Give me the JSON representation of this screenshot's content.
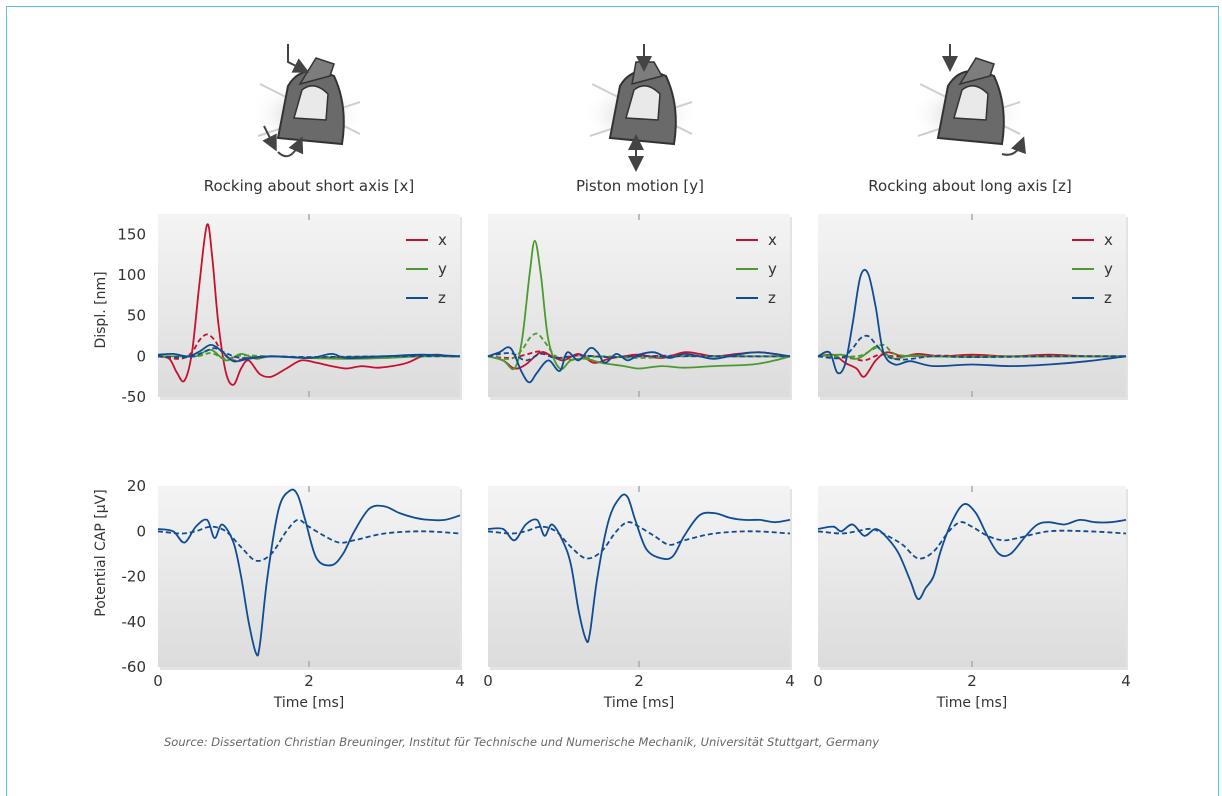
{
  "source": "Source: Dissertation Christian Breuninger, Institut für Technische und Numerische Mechanik, Universität Stuttgart, Germany",
  "colors": {
    "x": "#c8102e",
    "y": "#4a9a2f",
    "z": "#0f4c93",
    "frame": "#5cc3d8"
  },
  "icons": [
    "short-axis-rocking-icon",
    "piston-motion-icon",
    "long-axis-rocking-icon"
  ],
  "chart_data": [
    {
      "type": "line",
      "title": "Rocking about short axis [x]",
      "ylabel": "Displ. [nm]",
      "xlim": [
        0,
        4
      ],
      "ylim": [
        -50,
        175
      ],
      "yticks": [
        150,
        100,
        50,
        0,
        -50
      ],
      "legend": [
        "x",
        "y",
        "z"
      ],
      "series": [
        {
          "name": "x",
          "style": "solid",
          "x": [
            0,
            0.15,
            0.25,
            0.35,
            0.45,
            0.55,
            0.65,
            0.72,
            0.8,
            0.9,
            1.0,
            1.1,
            1.2,
            1.35,
            1.5,
            1.7,
            1.9,
            2.1,
            2.3,
            2.5,
            2.7,
            2.9,
            3.1,
            3.3,
            3.5,
            3.7,
            3.85,
            4.0
          ],
          "y": [
            0,
            -3,
            -20,
            -30,
            5,
            90,
            162,
            120,
            40,
            -20,
            -35,
            -15,
            -5,
            -22,
            -25,
            -15,
            -5,
            -8,
            -12,
            -15,
            -12,
            -14,
            -12,
            -8,
            0,
            2,
            0,
            0
          ]
        },
        {
          "name": "x",
          "style": "dashed",
          "x": [
            0,
            0.3,
            0.45,
            0.55,
            0.65,
            0.75,
            0.85,
            1.0,
            1.2,
            1.5,
            2.0,
            2.5,
            3.0,
            3.5,
            4.0
          ],
          "y": [
            0,
            -3,
            5,
            20,
            27,
            20,
            5,
            -5,
            -2,
            0,
            -2,
            -1,
            0,
            1,
            0
          ]
        },
        {
          "name": "y",
          "style": "solid",
          "x": [
            0,
            0.3,
            0.5,
            0.7,
            0.9,
            1.1,
            1.3,
            1.5,
            2.0,
            2.5,
            3.0,
            3.5,
            4.0
          ],
          "y": [
            0,
            0,
            0,
            8,
            -5,
            3,
            -3,
            0,
            -2,
            -3,
            -2,
            0,
            0
          ]
        },
        {
          "name": "y",
          "style": "dashed",
          "x": [
            0,
            0.5,
            0.7,
            0.9,
            1.1,
            1.5,
            2.0,
            3.0,
            4.0
          ],
          "y": [
            0,
            0,
            4,
            -3,
            1,
            0,
            -1,
            0,
            0
          ]
        },
        {
          "name": "z",
          "style": "solid",
          "x": [
            0,
            0.2,
            0.4,
            0.55,
            0.7,
            0.85,
            1.0,
            1.2,
            1.5,
            2.0,
            2.3,
            2.5,
            3.0,
            3.5,
            4.0
          ],
          "y": [
            2,
            3,
            0,
            6,
            14,
            6,
            -6,
            -3,
            0,
            -2,
            3,
            -2,
            0,
            2,
            0
          ]
        },
        {
          "name": "z",
          "style": "dashed",
          "x": [
            0,
            0.4,
            0.6,
            0.75,
            0.9,
            1.1,
            1.5,
            2.0,
            3.0,
            4.0
          ],
          "y": [
            0,
            -1,
            5,
            10,
            4,
            -2,
            0,
            -1,
            0,
            0
          ]
        }
      ]
    },
    {
      "type": "line",
      "title": "Piston motion [y]",
      "xlim": [
        0,
        4
      ],
      "ylim": [
        -50,
        175
      ],
      "legend": [
        "x",
        "y",
        "z"
      ],
      "series": [
        {
          "name": "x",
          "style": "solid",
          "x": [
            0,
            0.2,
            0.35,
            0.5,
            0.7,
            0.85,
            1.0,
            1.2,
            1.4,
            1.6,
            1.8,
            2.0,
            2.3,
            2.6,
            2.8,
            3.0,
            3.3,
            3.6,
            4.0
          ],
          "y": [
            0,
            -5,
            -15,
            -10,
            5,
            0,
            -5,
            3,
            -8,
            -3,
            0,
            2,
            -2,
            5,
            3,
            0,
            3,
            5,
            0
          ]
        },
        {
          "name": "x",
          "style": "dashed",
          "x": [
            0,
            0.3,
            0.5,
            0.7,
            0.9,
            1.2,
            1.6,
            2.0,
            2.6,
            3.2,
            4.0
          ],
          "y": [
            0,
            -2,
            2,
            6,
            -2,
            1,
            -1,
            0,
            1,
            0,
            0
          ]
        },
        {
          "name": "y",
          "style": "solid",
          "x": [
            0,
            0.2,
            0.35,
            0.45,
            0.55,
            0.62,
            0.7,
            0.8,
            0.95,
            1.1,
            1.3,
            1.5,
            1.8,
            2.0,
            2.3,
            2.6,
            3.0,
            3.5,
            3.8,
            4.0
          ],
          "y": [
            0,
            -5,
            -15,
            20,
            100,
            142,
            100,
            20,
            -15,
            -5,
            -3,
            -8,
            -12,
            -15,
            -12,
            -14,
            -12,
            -10,
            -5,
            0
          ]
        },
        {
          "name": "y",
          "style": "dashed",
          "x": [
            0,
            0.3,
            0.45,
            0.55,
            0.65,
            0.75,
            0.9,
            1.1,
            1.5,
            2.0,
            2.6,
            3.0,
            3.5,
            4.0
          ],
          "y": [
            0,
            -3,
            8,
            22,
            28,
            18,
            0,
            -4,
            0,
            -2,
            0,
            0,
            0,
            0
          ]
        },
        {
          "name": "z",
          "style": "solid",
          "x": [
            0,
            0.15,
            0.3,
            0.45,
            0.55,
            0.65,
            0.8,
            0.95,
            1.05,
            1.2,
            1.35,
            1.45,
            1.55,
            1.7,
            1.85,
            2.0,
            2.2,
            2.4,
            2.6,
            2.8,
            3.0,
            3.3,
            3.6,
            4.0
          ],
          "y": [
            0,
            5,
            10,
            -20,
            -32,
            -20,
            -5,
            -18,
            5,
            -5,
            10,
            5,
            -8,
            3,
            -5,
            2,
            5,
            -2,
            3,
            0,
            -3,
            2,
            5,
            0
          ]
        },
        {
          "name": "z",
          "style": "dashed",
          "x": [
            0,
            0.3,
            0.5,
            0.7,
            0.9,
            1.2,
            1.6,
            2.0,
            3.0,
            4.0
          ],
          "y": [
            0,
            4,
            -5,
            3,
            -2,
            1,
            -1,
            0,
            0,
            0
          ]
        }
      ]
    },
    {
      "type": "line",
      "title": "Rocking about long axis [z]",
      "xlim": [
        0,
        4
      ],
      "ylim": [
        -50,
        175
      ],
      "legend": [
        "x",
        "y",
        "z"
      ],
      "series": [
        {
          "name": "x",
          "style": "solid",
          "x": [
            0,
            0.2,
            0.35,
            0.5,
            0.6,
            0.75,
            0.9,
            1.1,
            1.3,
            1.6,
            2.0,
            2.5,
            3.0,
            3.5,
            4.0
          ],
          "y": [
            0,
            2,
            -8,
            -15,
            -25,
            -5,
            5,
            0,
            3,
            0,
            2,
            0,
            2,
            0,
            0
          ]
        },
        {
          "name": "x",
          "style": "dashed",
          "x": [
            0,
            0.4,
            0.6,
            0.8,
            1.0,
            1.5,
            2.0,
            3.0,
            4.0
          ],
          "y": [
            0,
            -2,
            -5,
            2,
            0,
            1,
            0,
            0,
            0
          ]
        },
        {
          "name": "y",
          "style": "solid",
          "x": [
            0,
            0.3,
            0.5,
            0.65,
            0.75,
            0.85,
            1.0,
            1.2,
            1.5,
            2.0,
            3.0,
            4.0
          ],
          "y": [
            0,
            2,
            -3,
            5,
            12,
            5,
            -3,
            1,
            0,
            -1,
            0,
            0
          ]
        },
        {
          "name": "y",
          "style": "dashed",
          "x": [
            0,
            0.5,
            0.7,
            0.85,
            1.0,
            1.3,
            2.0,
            3.0,
            4.0
          ],
          "y": [
            0,
            0,
            8,
            14,
            3,
            0,
            0,
            0,
            0
          ]
        },
        {
          "name": "z",
          "style": "solid",
          "x": [
            0,
            0.15,
            0.25,
            0.35,
            0.45,
            0.55,
            0.65,
            0.75,
            0.85,
            1.0,
            1.2,
            1.5,
            2.0,
            2.5,
            3.0,
            3.5,
            4.0
          ],
          "y": [
            0,
            5,
            -20,
            -10,
            40,
            98,
            102,
            60,
            5,
            -10,
            -6,
            -12,
            -10,
            -12,
            -10,
            -6,
            0
          ]
        },
        {
          "name": "z",
          "style": "dashed",
          "x": [
            0,
            0.3,
            0.45,
            0.55,
            0.65,
            0.75,
            0.9,
            1.1,
            1.5,
            2.0,
            3.0,
            4.0
          ],
          "y": [
            0,
            -2,
            10,
            22,
            25,
            15,
            0,
            -4,
            0,
            -1,
            0,
            0
          ]
        }
      ]
    },
    {
      "type": "line",
      "ylabel": "Potential CAP [µV]",
      "xlabel": "Time [ms]",
      "xlim": [
        0,
        4
      ],
      "ylim": [
        -60,
        20
      ],
      "yticks": [
        20,
        0,
        -20,
        -40,
        -60
      ],
      "xticks": [
        0,
        2,
        4
      ],
      "series": [
        {
          "style": "solid",
          "x": [
            0,
            0.2,
            0.35,
            0.5,
            0.65,
            0.75,
            0.85,
            1.0,
            1.1,
            1.2,
            1.3,
            1.35,
            1.45,
            1.6,
            1.75,
            1.85,
            1.95,
            2.1,
            2.3,
            2.45,
            2.6,
            2.8,
            3.0,
            3.2,
            3.4,
            3.6,
            3.8,
            4.0
          ],
          "y": [
            1,
            0,
            -5,
            2,
            5,
            -3,
            3,
            -5,
            -20,
            -40,
            -54,
            -50,
            -20,
            10,
            18,
            16,
            5,
            -12,
            -15,
            -10,
            0,
            10,
            11,
            8,
            6,
            5,
            5,
            7
          ]
        },
        {
          "style": "dashed",
          "x": [
            0,
            0.3,
            0.5,
            0.7,
            0.9,
            1.1,
            1.3,
            1.5,
            1.7,
            1.85,
            2.0,
            2.2,
            2.4,
            2.6,
            3.0,
            3.5,
            4.0
          ],
          "y": [
            0,
            -1,
            0,
            2,
            0,
            -7,
            -13,
            -10,
            0,
            5,
            2,
            -2,
            -5,
            -4,
            -1,
            0,
            -1
          ]
        }
      ]
    },
    {
      "type": "line",
      "xlabel": "Time [ms]",
      "xlim": [
        0,
        4
      ],
      "ylim": [
        -60,
        20
      ],
      "xticks": [
        0,
        2,
        4
      ],
      "series": [
        {
          "style": "solid",
          "x": [
            0,
            0.2,
            0.35,
            0.5,
            0.65,
            0.75,
            0.85,
            1.0,
            1.1,
            1.2,
            1.3,
            1.35,
            1.45,
            1.6,
            1.75,
            1.85,
            1.95,
            2.1,
            2.3,
            2.45,
            2.6,
            2.8,
            3.0,
            3.2,
            3.4,
            3.6,
            3.8,
            4.0
          ],
          "y": [
            1,
            1,
            -4,
            3,
            5,
            -2,
            3,
            -5,
            -15,
            -35,
            -48,
            -45,
            -20,
            5,
            15,
            15,
            5,
            -8,
            -12,
            -11,
            -2,
            7,
            8,
            6,
            5,
            5,
            4,
            5
          ]
        },
        {
          "style": "dashed",
          "x": [
            0,
            0.3,
            0.5,
            0.7,
            0.9,
            1.1,
            1.3,
            1.5,
            1.7,
            1.85,
            2.0,
            2.2,
            2.4,
            2.6,
            3.0,
            3.5,
            4.0
          ],
          "y": [
            0,
            -1,
            0,
            2,
            0,
            -7,
            -12,
            -9,
            0,
            4,
            2,
            -2,
            -6,
            -4,
            -1,
            0,
            -1
          ]
        }
      ]
    },
    {
      "type": "line",
      "xlabel": "Time [ms]",
      "xlim": [
        0,
        4
      ],
      "ylim": [
        -60,
        20
      ],
      "xticks": [
        0,
        2,
        4
      ],
      "series": [
        {
          "style": "solid",
          "x": [
            0,
            0.2,
            0.3,
            0.45,
            0.6,
            0.75,
            0.9,
            1.05,
            1.2,
            1.3,
            1.4,
            1.5,
            1.6,
            1.75,
            1.9,
            2.05,
            2.2,
            2.35,
            2.5,
            2.7,
            2.85,
            3.0,
            3.2,
            3.4,
            3.6,
            3.8,
            4.0
          ],
          "y": [
            1,
            2,
            0,
            3,
            -2,
            1,
            -3,
            -10,
            -22,
            -30,
            -25,
            -20,
            -8,
            5,
            12,
            8,
            -2,
            -10,
            -10,
            -2,
            3,
            4,
            3,
            5,
            4,
            4,
            5
          ]
        },
        {
          "style": "dashed",
          "x": [
            0,
            0.3,
            0.5,
            0.7,
            0.9,
            1.1,
            1.3,
            1.5,
            1.7,
            1.85,
            2.0,
            2.2,
            2.4,
            2.6,
            3.0,
            3.5,
            4.0
          ],
          "y": [
            0,
            -1,
            0,
            1,
            -2,
            -6,
            -12,
            -9,
            0,
            4,
            2,
            -2,
            -4,
            -3,
            0,
            0,
            -1
          ]
        }
      ]
    }
  ]
}
